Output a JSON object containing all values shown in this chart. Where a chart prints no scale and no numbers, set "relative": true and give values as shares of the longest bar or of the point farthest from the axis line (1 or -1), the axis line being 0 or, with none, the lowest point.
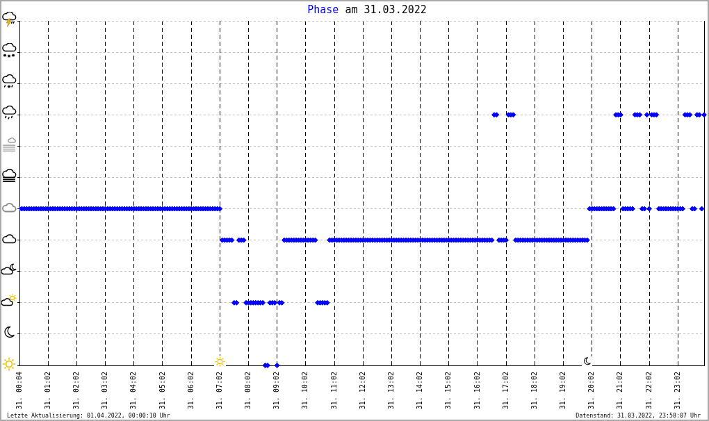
{
  "chart_data": {
    "type": "scatter",
    "title": "Phase am 31.03.2022",
    "annotations": [
      "Letzte Aktualisierung: 01.04.2022, 00:00:10 Uhr",
      "Datenstand: 31.03.2022, 23:58:07 Uhr"
    ],
    "relative": true,
    "grid": true,
    "marker": "diamond",
    "color": "#0000ff",
    "categories": [
      "31. 00:04",
      null,
      null,
      null,
      null,
      null,
      null,
      null,
      null,
      null,
      null,
      null,
      "31. 01:02",
      null,
      null,
      null,
      null,
      null,
      null,
      null,
      null,
      null,
      null,
      null,
      "31. 02:02",
      null,
      null,
      null,
      null,
      null,
      null,
      null,
      null,
      null,
      null,
      null,
      "31. 03:02",
      null,
      null,
      null,
      null,
      null,
      null,
      null,
      null,
      null,
      null,
      null,
      "31. 04:02",
      null,
      null,
      null,
      null,
      null,
      null,
      null,
      null,
      null,
      null,
      null,
      "31. 05:02",
      null,
      null,
      null,
      null,
      null,
      null,
      null,
      null,
      null,
      null,
      null,
      "31. 06:02",
      null,
      null,
      null,
      null,
      null,
      null,
      null,
      null,
      null,
      null,
      null,
      "31. 07:02",
      null,
      null,
      null,
      null,
      null,
      null,
      null,
      null,
      null,
      null,
      null,
      "31. 08:02",
      null,
      null,
      null,
      null,
      null,
      null,
      null,
      null,
      null,
      null,
      null,
      "31. 09:02",
      null,
      null,
      null,
      null,
      null,
      null,
      null,
      null,
      null,
      null,
      null,
      "31. 10:02",
      null,
      null,
      null,
      null,
      null,
      null,
      null,
      null,
      null,
      null,
      null,
      "31. 11:02",
      null,
      null,
      null,
      null,
      null,
      null,
      null,
      null,
      null,
      null,
      null,
      "31. 12:02",
      null,
      null,
      null,
      null,
      null,
      null,
      null,
      null,
      null,
      null,
      null,
      "31. 13:02",
      null,
      null,
      null,
      null,
      null,
      null,
      null,
      null,
      null,
      null,
      null,
      "31. 14:02",
      null,
      null,
      null,
      null,
      null,
      null,
      null,
      null,
      null,
      null,
      null,
      "31. 15:02",
      null,
      null,
      null,
      null,
      null,
      null,
      null,
      null,
      null,
      null,
      null,
      "31. 16:02",
      null,
      null,
      null,
      null,
      null,
      null,
      null,
      null,
      null,
      null,
      null,
      "31. 17:02",
      null,
      null,
      null,
      null,
      null,
      null,
      null,
      null,
      null,
      null,
      null,
      "31. 18:02",
      null,
      null,
      null,
      null,
      null,
      null,
      null,
      null,
      null,
      null,
      null,
      "31. 19:02",
      null,
      null,
      null,
      null,
      null,
      null,
      null,
      null,
      null,
      null,
      null,
      "31. 20:02",
      null,
      null,
      null,
      null,
      null,
      null,
      null,
      null,
      null,
      null,
      null,
      "31. 21:02",
      null,
      null,
      null,
      null,
      null,
      null,
      null,
      null,
      null,
      null,
      null,
      "31. 22:02",
      null,
      null,
      null,
      null,
      null,
      null,
      null,
      null,
      null,
      null,
      null,
      "31. 23:02",
      null,
      null,
      null,
      null,
      null,
      null,
      null,
      null,
      null,
      null,
      null
    ],
    "values": [
      0.625,
      0.625,
      0.625,
      0.625,
      0.625,
      0.625,
      0.625,
      0.625,
      0.625,
      0.625,
      0.625,
      0.625,
      0.625,
      0.625,
      0.625,
      0.625,
      0.625,
      0.625,
      0.625,
      0.625,
      0.625,
      0.625,
      0.625,
      0.625,
      0.625,
      0.625,
      0.625,
      0.625,
      0.625,
      0.625,
      0.625,
      0.625,
      0.625,
      0.625,
      0.625,
      0.625,
      0.625,
      0.625,
      0.625,
      0.625,
      0.625,
      0.625,
      0.625,
      0.625,
      0.625,
      0.625,
      0.625,
      0.625,
      0.625,
      0.625,
      0.625,
      0.625,
      0.625,
      0.625,
      0.625,
      0.625,
      0.625,
      0.625,
      0.625,
      0.625,
      0.625,
      0.625,
      0.625,
      0.625,
      0.625,
      0.625,
      0.625,
      0.625,
      0.625,
      0.625,
      0.625,
      0.625,
      0.625,
      0.625,
      0.625,
      0.625,
      0.625,
      0.625,
      0.625,
      0.625,
      0.625,
      0.625,
      0.625,
      0.625,
      0.625,
      0.5,
      0.5,
      0.5,
      0.5,
      0.5,
      0.25,
      0.25,
      0.5,
      0.5,
      0.5,
      0.25,
      0.25,
      0.25,
      0.25,
      0.25,
      0.25,
      0.25,
      0.25,
      0,
      0,
      0.25,
      0.25,
      0.25,
      0,
      0.25,
      0.25,
      0.5,
      0.5,
      0.5,
      0.5,
      0.5,
      0.5,
      0.5,
      0.5,
      0.5,
      0.5,
      0.5,
      0.5,
      0.5,
      0.5,
      0.25,
      0.25,
      0.25,
      0.25,
      0.25,
      0.5,
      0.5,
      0.5,
      0.5,
      0.5,
      0.5,
      0.5,
      0.5,
      0.5,
      0.5,
      0.5,
      0.5,
      0.5,
      0.5,
      0.5,
      0.5,
      0.5,
      0.5,
      0.5,
      0.5,
      0.5,
      0.5,
      0.5,
      0.5,
      0.5,
      0.5,
      0.5,
      0.5,
      0.5,
      0.5,
      0.5,
      0.5,
      0.5,
      0.5,
      0.5,
      0.5,
      0.5,
      0.5,
      0.5,
      0.5,
      0.5,
      0.5,
      0.5,
      0.5,
      0.5,
      0.5,
      0.5,
      0.5,
      0.5,
      0.5,
      0.5,
      0.5,
      0.5,
      0.5,
      0.5,
      0.5,
      0.5,
      0.5,
      0.5,
      0.5,
      0.5,
      0.5,
      0.5,
      0.5,
      0.5,
      0.5,
      0.5,
      0.5,
      0.5,
      1,
      1,
      0.5,
      0.5,
      0.5,
      0.5,
      1,
      1,
      1,
      0.5,
      0.5,
      0.5,
      0.5,
      0.5,
      0.5,
      0.5,
      0.5,
      0.5,
      0.5,
      0.5,
      0.5,
      0.5,
      0.5,
      0.5,
      0.5,
      0.5,
      0.5,
      0.5,
      0.5,
      0.5,
      0.5,
      0.5,
      0.5,
      0.5,
      0.5,
      0.5,
      0.5,
      0.5,
      0.5,
      0.5,
      0.625,
      0.625,
      0.625,
      0.625,
      0.625,
      0.625,
      0.625,
      0.625,
      0.625,
      0.625,
      0.625,
      1,
      1,
      1,
      0.625,
      0.625,
      0.625,
      0.625,
      0.625,
      1,
      1,
      1,
      0.625,
      0.625,
      1,
      0.625,
      1,
      1,
      1,
      0.625,
      0.625,
      0.625,
      0.625,
      0.625,
      0.625,
      0.625,
      0.625,
      0.625,
      0.625,
      0.625,
      1,
      1,
      1,
      0.625,
      0.625,
      1,
      1,
      0.625,
      1
    ]
  }
}
